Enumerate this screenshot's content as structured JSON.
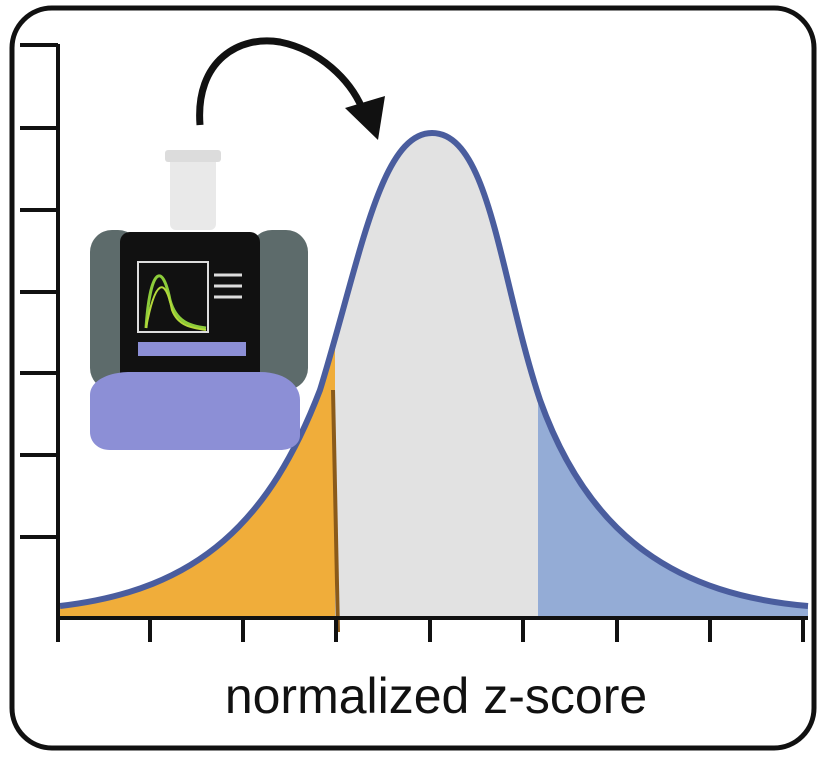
{
  "axis_label": "normalized z-score"
}
